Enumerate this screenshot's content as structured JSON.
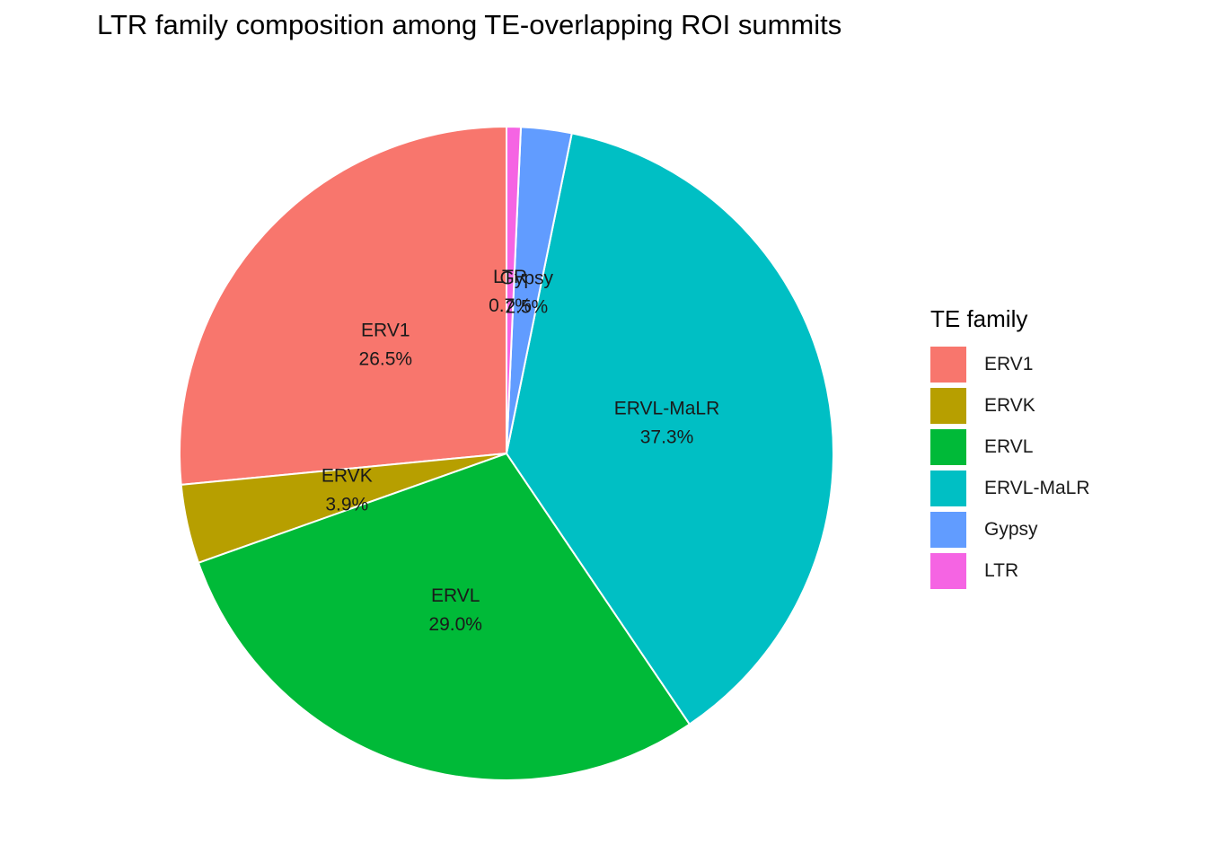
{
  "chart_data": {
    "type": "pie",
    "title": "LTR family composition among TE-overlapping ROI summits",
    "legend_title": "TE family",
    "legend_position": "right",
    "start_angle": "top, counterclockwise",
    "slices": [
      {
        "name": "ERV1",
        "value": 26.5,
        "label": "26.5%",
        "color": "#F8766D"
      },
      {
        "name": "ERVK",
        "value": 3.9,
        "label": "3.9%",
        "color": "#B79F00"
      },
      {
        "name": "ERVL",
        "value": 29.0,
        "label": "29.0%",
        "color": "#00BA38"
      },
      {
        "name": "ERVL-MaLR",
        "value": 37.3,
        "label": "37.3%",
        "color": "#00BFC4"
      },
      {
        "name": "Gypsy",
        "value": 2.5,
        "label": "2.5%",
        "color": "#619CFF"
      },
      {
        "name": "LTR",
        "value": 0.7,
        "label": "0.7%",
        "color": "#F564E3"
      }
    ]
  }
}
